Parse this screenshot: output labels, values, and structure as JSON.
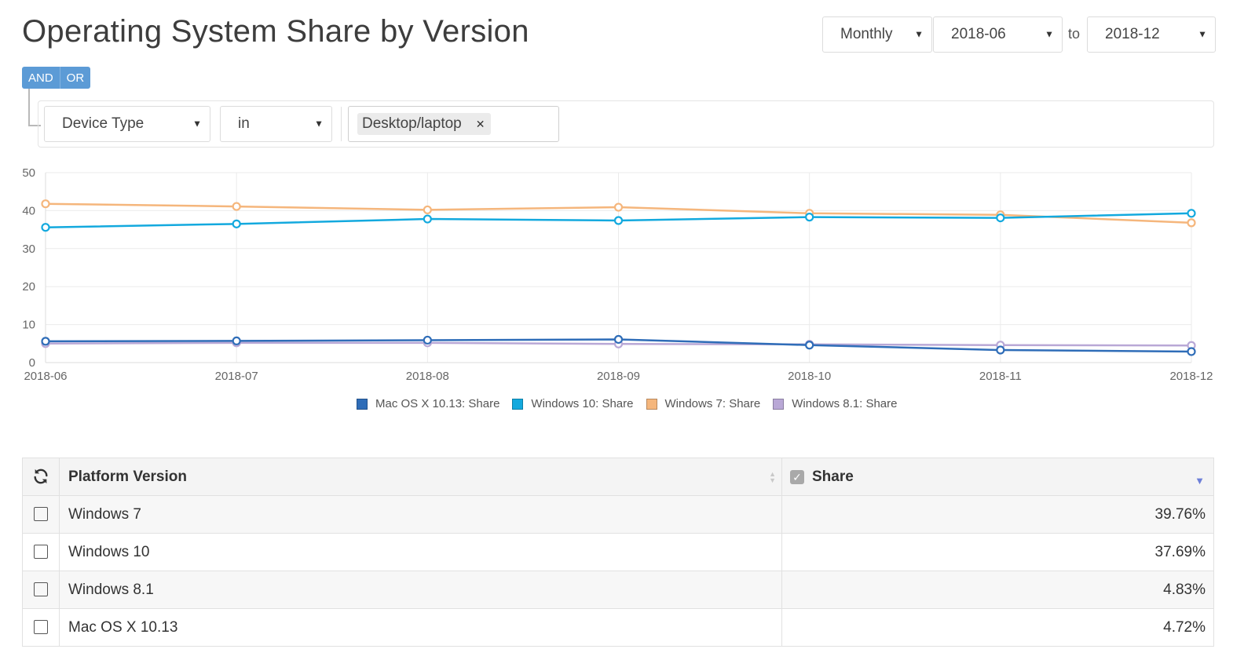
{
  "page": {
    "title": "Operating System Share by Version"
  },
  "controls": {
    "granularity": "Monthly",
    "from": "2018-06",
    "to_label": "to",
    "to": "2018-12"
  },
  "filter": {
    "logic_and": "AND",
    "logic_or": "OR",
    "field": "Device Type",
    "operator": "in",
    "values": [
      "Desktop/laptop"
    ]
  },
  "chart_data": {
    "type": "line",
    "x": [
      "2018-06",
      "2018-07",
      "2018-08",
      "2018-09",
      "2018-10",
      "2018-11",
      "2018-12"
    ],
    "ylim": [
      0,
      50
    ],
    "yticks": [
      "0",
      "10",
      "20",
      "30",
      "40",
      "50"
    ],
    "grid": true,
    "legend_position": "bottom",
    "series": [
      {
        "name": "Mac OS X 10.13: Share",
        "color": "#2f6db8",
        "values": [
          5.6,
          5.7,
          5.9,
          6.1,
          4.6,
          3.3,
          2.9
        ]
      },
      {
        "name": "Windows 10: Share",
        "color": "#13a9de",
        "values": [
          35.6,
          36.5,
          37.8,
          37.4,
          38.3,
          38.1,
          39.3
        ]
      },
      {
        "name": "Windows 7: Share",
        "color": "#f5b67c",
        "values": [
          41.8,
          41.1,
          40.2,
          40.9,
          39.3,
          38.9,
          36.8
        ]
      },
      {
        "name": "Windows 8.1: Share",
        "color": "#b9a8d6",
        "values": [
          5.0,
          5.2,
          5.2,
          4.9,
          4.8,
          4.6,
          4.5
        ]
      }
    ]
  },
  "table": {
    "headers": {
      "platform": "Platform Version",
      "share": "Share"
    },
    "rows": [
      {
        "platform": "Windows 7",
        "share": "39.76%"
      },
      {
        "platform": "Windows 10",
        "share": "37.69%"
      },
      {
        "platform": "Windows 8.1",
        "share": "4.83%"
      },
      {
        "platform": "Mac OS X 10.13",
        "share": "4.72%"
      }
    ]
  },
  "icons": {
    "refresh": "refresh-icon",
    "checkbox": "checkbox-icon",
    "caret": "caret-down-icon",
    "remove": "close-icon"
  }
}
